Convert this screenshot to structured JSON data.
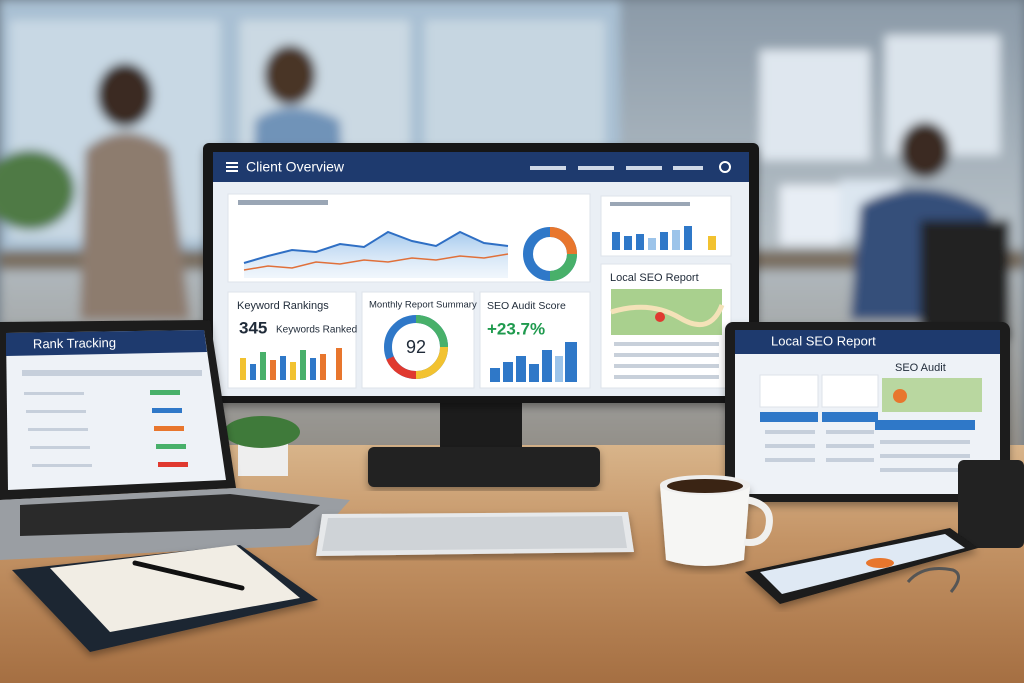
{
  "monitor": {
    "header": {
      "title": "Client Overview"
    },
    "cards": {
      "keyword_rankings": {
        "title": "Keyword Rankings",
        "count": 345,
        "caption": "Keywords Ranked"
      },
      "monthly_report": {
        "title": "Monthly Report Summary",
        "score": 92
      },
      "seo_audit": {
        "title": "SEO Audit Score",
        "change": "+23.7%"
      },
      "local_seo": {
        "title": "Local SEO Report"
      }
    }
  },
  "laptop": {
    "title": "Rank Tracking"
  },
  "tablet": {
    "title": "Local SEO Report",
    "section": "SEO Audit"
  }
}
